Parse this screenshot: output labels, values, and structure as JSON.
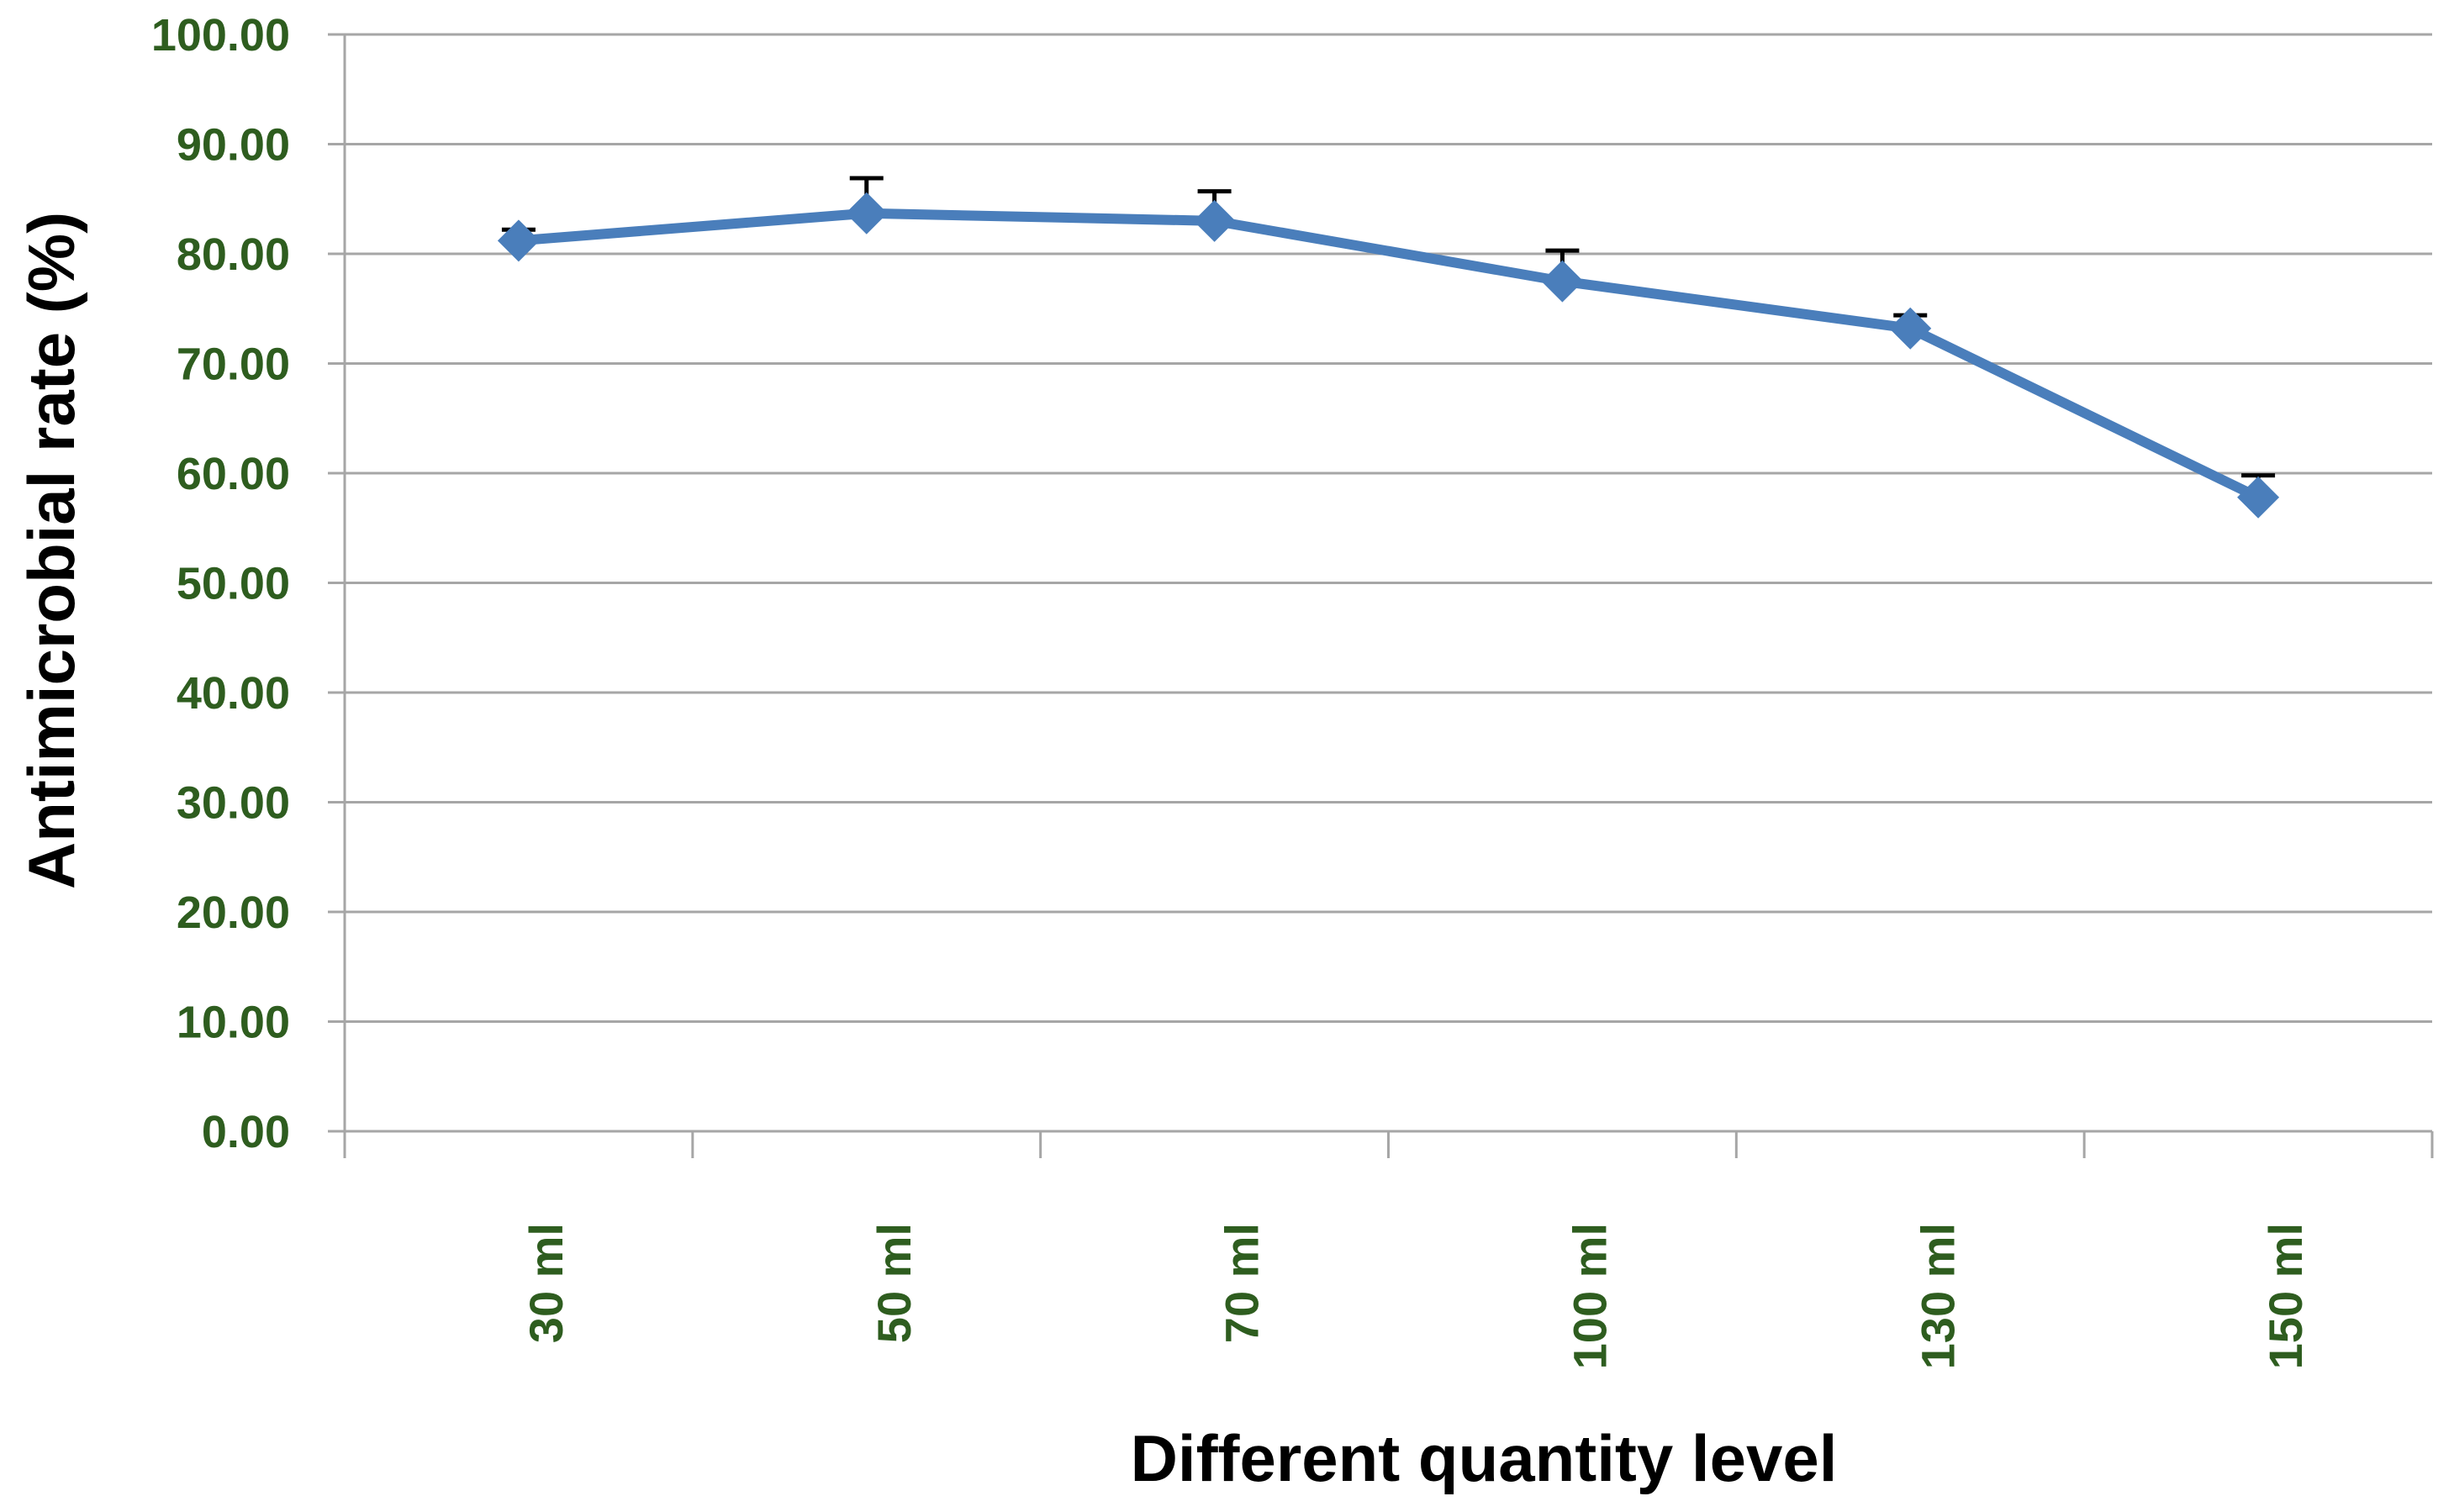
{
  "colors": {
    "series": "#4a7ebb",
    "tick_label": "#2e5d1f",
    "axis_title": "#1f3566",
    "grid": "#a6a6a6",
    "error_bar": "#000000"
  },
  "chart_data": {
    "type": "line",
    "title": "",
    "xlabel": "Different quantity level",
    "ylabel": "Antimicrobial rate (%)",
    "categories": [
      "30 ml",
      "50 ml",
      "70 ml",
      "100 ml",
      "130 ml",
      "150 ml"
    ],
    "series": [
      {
        "values": [
          81.2,
          83.7,
          83.0,
          77.5,
          73.2,
          57.8
        ],
        "error": [
          1.0,
          3.2,
          2.7,
          2.8,
          1.2,
          2.0
        ],
        "marker": "diamond"
      }
    ],
    "ylim": [
      0,
      100
    ],
    "yticks": [
      "0.00",
      "10.00",
      "20.00",
      "30.00",
      "40.00",
      "50.00",
      "60.00",
      "70.00",
      "80.00",
      "90.00",
      "100.00"
    ],
    "grid": true,
    "legend": "none"
  }
}
